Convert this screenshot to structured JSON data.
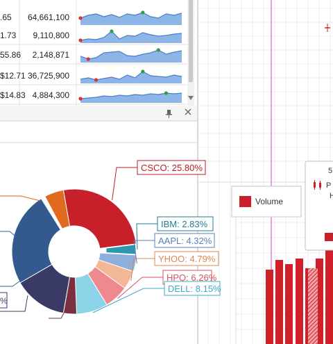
{
  "grid": {
    "rows": [
      {
        "price": ".65",
        "volume": "64,661,100",
        "spark": [
          0.5,
          0.7,
          0.8,
          0.6,
          0.75,
          0.55,
          0.8,
          0.7,
          0.9,
          0.6,
          0.5,
          0.8,
          0.7,
          0.85
        ]
      },
      {
        "price": "1.73",
        "volume": "9,110,800",
        "spark": [
          0.2,
          0.3,
          0.25,
          0.4,
          0.85,
          0.3,
          0.55,
          0.5,
          0.75,
          0.6,
          0.5,
          0.55,
          0.65,
          0.7
        ]
      },
      {
        "price": "55.86",
        "volume": "2,148,871",
        "spark": [
          0.45,
          0.25,
          0.35,
          0.7,
          0.75,
          0.8,
          0.5,
          0.45,
          0.6,
          0.7,
          0.9,
          0.6,
          0.75,
          0.85
        ]
      },
      {
        "price": "$12.71",
        "volume": "36,725,900",
        "spark": [
          0.3,
          0.4,
          0.25,
          0.35,
          0.45,
          0.3,
          0.6,
          0.4,
          0.85,
          0.55,
          0.5,
          0.45,
          0.6,
          0.5
        ]
      },
      {
        "price": "$14.83",
        "volume": "4,884,300",
        "spark": [
          0.3,
          0.35,
          0.4,
          0.5,
          0.45,
          0.55,
          0.5,
          0.6,
          0.55,
          0.65,
          0.6,
          0.7,
          0.65,
          0.7
        ]
      }
    ]
  },
  "panel_icons": {
    "pin": "pin-icon",
    "close": "close-icon",
    "scroll": "scroll-down-arrow-icon"
  },
  "legend": {
    "volume_label": "Volume"
  },
  "tooltip": {
    "letter": "5",
    "line1": "P",
    "line2": "H"
  },
  "partial_label": "%",
  "colors": {
    "accent_red": "#c8202a",
    "guide_magenta": "#d046c8",
    "line_blue": "#4a7fc6",
    "fill_blue": "#8eb5e8"
  },
  "chart_data": {
    "type": "pie",
    "series": [
      {
        "name": "CSCO",
        "label": "CSCO: 25.80%",
        "value": 25.8,
        "color": "#c8202a"
      },
      {
        "name": "IBM",
        "label": "IBM: 2.83%",
        "value": 2.83,
        "color": "#2e97b0"
      },
      {
        "name": "AAPL",
        "label": "AAPL: 4.32%",
        "value": 4.32,
        "color": "#8eaedc"
      },
      {
        "name": "YHOO",
        "label": "YHOO: 4.79%",
        "value": 4.79,
        "color": "#f2b797"
      },
      {
        "name": "HPQ",
        "label": "HPQ: 6.26%",
        "value": 6.26,
        "color": "#ef8990"
      },
      {
        "name": "DELL",
        "label": "DELL: 8.15%",
        "value": 8.15,
        "color": "#8bd3e6"
      }
    ]
  }
}
